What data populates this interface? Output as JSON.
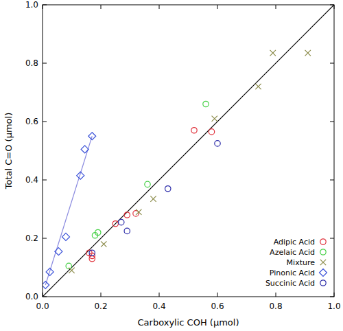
{
  "chart_data": {
    "type": "scatter",
    "x_label": "Carboxylic COH (µmol)",
    "y_label": "Total C=O (µmol)",
    "xlim": [
      0,
      1
    ],
    "ylim": [
      0,
      1
    ],
    "xticks": [
      {
        "value": 0,
        "label": "0.0"
      },
      {
        "value": 0.2,
        "label": "0.2"
      },
      {
        "value": 0.4,
        "label": "0.4"
      },
      {
        "value": 0.6,
        "label": "0.6"
      },
      {
        "value": 0.8,
        "label": "0.8"
      },
      {
        "value": 1,
        "label": "1.0"
      }
    ],
    "yticks": [
      {
        "value": 0,
        "label": "0.0"
      },
      {
        "value": 0.2,
        "label": "0.2"
      },
      {
        "value": 0.4,
        "label": "0.4"
      },
      {
        "value": 0.6,
        "label": "0.6"
      },
      {
        "value": 0.8,
        "label": "0.8"
      },
      {
        "value": 1,
        "label": "1.0"
      }
    ],
    "grid": false,
    "legend": "lower right",
    "series": [
      {
        "type": "line",
        "color": "#000000",
        "line_style": "solid",
        "x": [
          0,
          1
        ],
        "values": [
          0,
          1
        ]
      },
      {
        "type": "line",
        "color": "#8c8ce0",
        "line_style": "solid",
        "x": [
          0.01,
          0.17
        ],
        "values": [
          0.04,
          0.55
        ]
      },
      {
        "name": "Adipic Acid",
        "color": "#e0303a",
        "marker": "circle",
        "x": [
          0.16,
          0.17,
          0.17,
          0.25,
          0.29,
          0.32,
          0.52,
          0.58
        ],
        "values": [
          0.15,
          0.14,
          0.13,
          0.25,
          0.28,
          0.285,
          0.57,
          0.565
        ]
      },
      {
        "name": "Azelaic Acid",
        "color": "#44d044",
        "marker": "circle",
        "x": [
          0.09,
          0.18,
          0.19,
          0.36,
          0.56
        ],
        "values": [
          0.105,
          0.21,
          0.22,
          0.385,
          0.66
        ]
      },
      {
        "name": "Mixture",
        "color": "#8a8a48",
        "marker": "x",
        "x": [
          0.1,
          0.21,
          0.33,
          0.38,
          0.59,
          0.74,
          0.79,
          0.91
        ],
        "values": [
          0.09,
          0.18,
          0.29,
          0.335,
          0.61,
          0.72,
          0.835,
          0.835
        ]
      },
      {
        "name": "Pinonic Acid",
        "color": "#3850d8",
        "marker": "diamond",
        "x": [
          0.01,
          0.025,
          0.055,
          0.08,
          0.13,
          0.145,
          0.17
        ],
        "values": [
          0.04,
          0.085,
          0.155,
          0.205,
          0.415,
          0.505,
          0.55
        ]
      },
      {
        "name": "Succinic Acid",
        "color": "#2a2aa8",
        "marker": "circle",
        "x": [
          0.17,
          0.27,
          0.29,
          0.43,
          0.6
        ],
        "values": [
          0.15,
          0.255,
          0.225,
          0.37,
          0.525
        ]
      }
    ]
  }
}
